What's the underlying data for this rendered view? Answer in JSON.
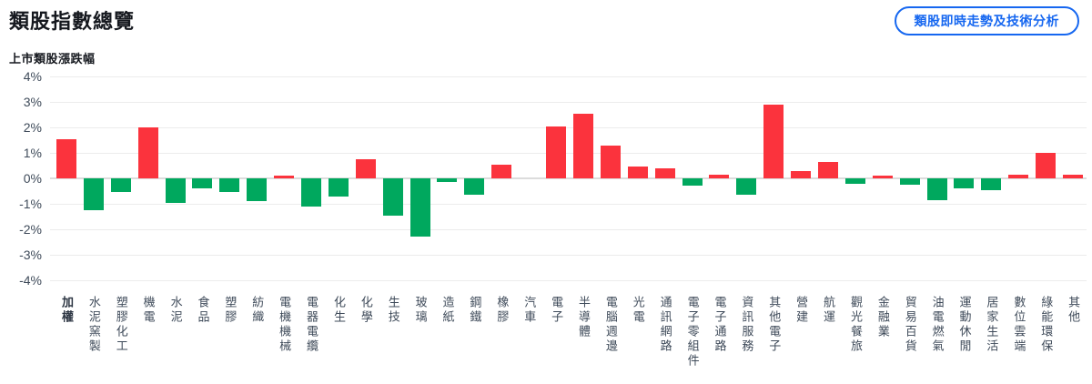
{
  "header": {
    "title": "類股指數總覽",
    "button_label": "類股即時走勢及技術分析"
  },
  "chart": {
    "subtitle": "上市類股漲跌幅"
  },
  "colors": {
    "up_red": "#fb333d",
    "down_green": "#00a85e",
    "accent_blue": "#1667f0",
    "axis_label": "#3f4b5a",
    "gridline": "#ececec",
    "zero_line": "#dcdcdc"
  },
  "chart_data": {
    "type": "bar",
    "title": "上市類股漲跌幅",
    "unit": "%",
    "categories": [
      "加權",
      "水泥窯製",
      "塑膠化工",
      "機電",
      "水泥",
      "食品",
      "塑膠",
      "紡織",
      "電機機械",
      "電器電纜",
      "化生",
      "化學",
      "生技",
      "玻璃",
      "造紙",
      "鋼鐵",
      "橡膠",
      "汽車",
      "電子",
      "半導體",
      "電腦週邊",
      "光電",
      "通訊網路",
      "電子零組件",
      "電子通路",
      "資訊服務",
      "其他電子",
      "營建",
      "航運",
      "觀光餐旅",
      "金融業",
      "貿易百貨",
      "油電燃氣",
      "運動休閒",
      "居家生活",
      "數位雲端",
      "綠能環保",
      "其他"
    ],
    "values": [
      1.55,
      -1.25,
      -0.55,
      2.0,
      -0.95,
      -0.4,
      -0.55,
      -0.9,
      0.1,
      -1.1,
      -0.7,
      0.75,
      -1.45,
      -2.3,
      -0.15,
      -0.65,
      0.55,
      0,
      2.05,
      2.55,
      1.3,
      0.45,
      0.4,
      -0.3,
      0.15,
      -0.65,
      2.9,
      0.3,
      0.65,
      -0.2,
      0.1,
      -0.25,
      -0.85,
      -0.4,
      -0.45,
      0.15,
      1.0,
      0.15
    ],
    "ylim": [
      -4,
      4
    ],
    "ytick_step": 1,
    "yticks": [
      "4%",
      "3%",
      "2%",
      "1%",
      "0%",
      "-1%",
      "-2%",
      "-3%",
      "-4%"
    ],
    "grid": true,
    "legend": "none",
    "bold_categories": [
      "加權"
    ],
    "color_convention": "red = rise, green = fall (Taiwan market convention)"
  }
}
